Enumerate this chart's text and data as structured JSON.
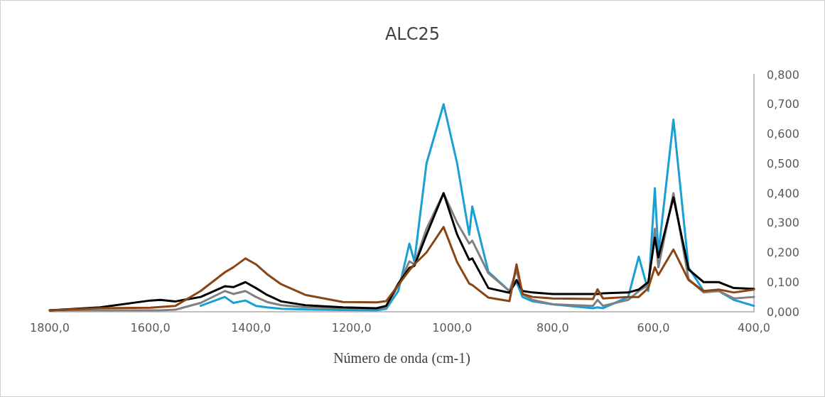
{
  "chart_data": {
    "type": "line",
    "title": "ALC25",
    "xlabel": "Número de onda (cm-1)",
    "x": [
      1800,
      1700,
      1600,
      1580,
      1550,
      1500,
      1452,
      1435,
      1411,
      1390,
      1368,
      1340,
      1292,
      1217,
      1150,
      1131,
      1107,
      1085,
      1075,
      1051,
      1017,
      990,
      966,
      960,
      928,
      886,
      872,
      860,
      840,
      800,
      720,
      711,
      700,
      650,
      629,
      610,
      597,
      590,
      560,
      530,
      500,
      470,
      440,
      400
    ],
    "series": [
      {
        "color": "#1a9fd4",
        "values": [
          null,
          null,
          null,
          null,
          null,
          0.02,
          0.05,
          0.03,
          0.038,
          0.02,
          0.015,
          0.01,
          0.008,
          0.006,
          0.005,
          0.01,
          0.07,
          0.23,
          0.17,
          0.5,
          0.7,
          0.5,
          0.26,
          0.355,
          0.135,
          0.07,
          0.1,
          0.05,
          0.035,
          0.025,
          0.012,
          0.015,
          0.012,
          0.05,
          0.186,
          0.07,
          0.417,
          0.195,
          0.648,
          0.15,
          0.07,
          0.07,
          0.04,
          0.02
        ]
      },
      {
        "color": "#808080",
        "values": [
          0.005,
          0.005,
          0.005,
          0.005,
          0.007,
          0.03,
          0.07,
          0.06,
          0.07,
          0.05,
          0.033,
          0.022,
          0.015,
          0.012,
          0.01,
          0.015,
          0.09,
          0.17,
          0.16,
          0.28,
          0.4,
          0.3,
          0.23,
          0.24,
          0.13,
          0.07,
          0.14,
          0.06,
          0.04,
          0.025,
          0.02,
          0.04,
          0.02,
          0.04,
          0.07,
          0.09,
          0.28,
          0.15,
          0.4,
          0.11,
          0.065,
          0.07,
          0.045,
          0.05
        ]
      },
      {
        "color": "#000000",
        "values": [
          0.005,
          0.015,
          0.038,
          0.04,
          0.035,
          0.05,
          0.086,
          0.083,
          0.1,
          0.08,
          0.057,
          0.035,
          0.022,
          0.015,
          0.012,
          0.02,
          0.095,
          0.148,
          0.155,
          0.26,
          0.4,
          0.26,
          0.175,
          0.18,
          0.08,
          0.064,
          0.107,
          0.07,
          0.065,
          0.06,
          0.06,
          0.06,
          0.062,
          0.065,
          0.075,
          0.1,
          0.25,
          0.183,
          0.386,
          0.143,
          0.1,
          0.1,
          0.08,
          0.077
        ]
      },
      {
        "color": "#8b4513",
        "values": [
          0.005,
          0.012,
          0.014,
          0.016,
          0.02,
          0.07,
          0.133,
          0.15,
          0.18,
          0.16,
          0.127,
          0.093,
          0.057,
          0.033,
          0.032,
          0.036,
          0.09,
          0.14,
          0.16,
          0.2,
          0.286,
          0.167,
          0.095,
          0.09,
          0.048,
          0.036,
          0.16,
          0.06,
          0.05,
          0.045,
          0.043,
          0.076,
          0.045,
          0.05,
          0.05,
          0.08,
          0.15,
          0.124,
          0.21,
          0.107,
          0.07,
          0.075,
          0.065,
          0.075
        ]
      }
    ],
    "xlim": [
      1800,
      400
    ],
    "xticks": [
      {
        "value": 1800,
        "label": "1800,0"
      },
      {
        "value": 1600,
        "label": "1600,0"
      },
      {
        "value": 1400,
        "label": "1400,0"
      },
      {
        "value": 1200,
        "label": "1200,0"
      },
      {
        "value": 1000,
        "label": "1000,0"
      },
      {
        "value": 800,
        "label": "800,0"
      },
      {
        "value": 600,
        "label": "600,0"
      },
      {
        "value": 400,
        "label": "400,0"
      }
    ],
    "ylim": [
      0,
      0.8
    ],
    "yticks": [
      {
        "value": 0,
        "label": "0,000"
      },
      {
        "value": 0.1,
        "label": "0,100"
      },
      {
        "value": 0.2,
        "label": "0,200"
      },
      {
        "value": 0.3,
        "label": "0,300"
      },
      {
        "value": 0.4,
        "label": "0,400"
      },
      {
        "value": 0.5,
        "label": "0,500"
      },
      {
        "value": 0.6,
        "label": "0,600"
      },
      {
        "value": 0.7,
        "label": "0,700"
      },
      {
        "value": 0.8,
        "label": "0,800"
      }
    ],
    "grid": false,
    "marker": "none",
    "line_style": "solid"
  }
}
